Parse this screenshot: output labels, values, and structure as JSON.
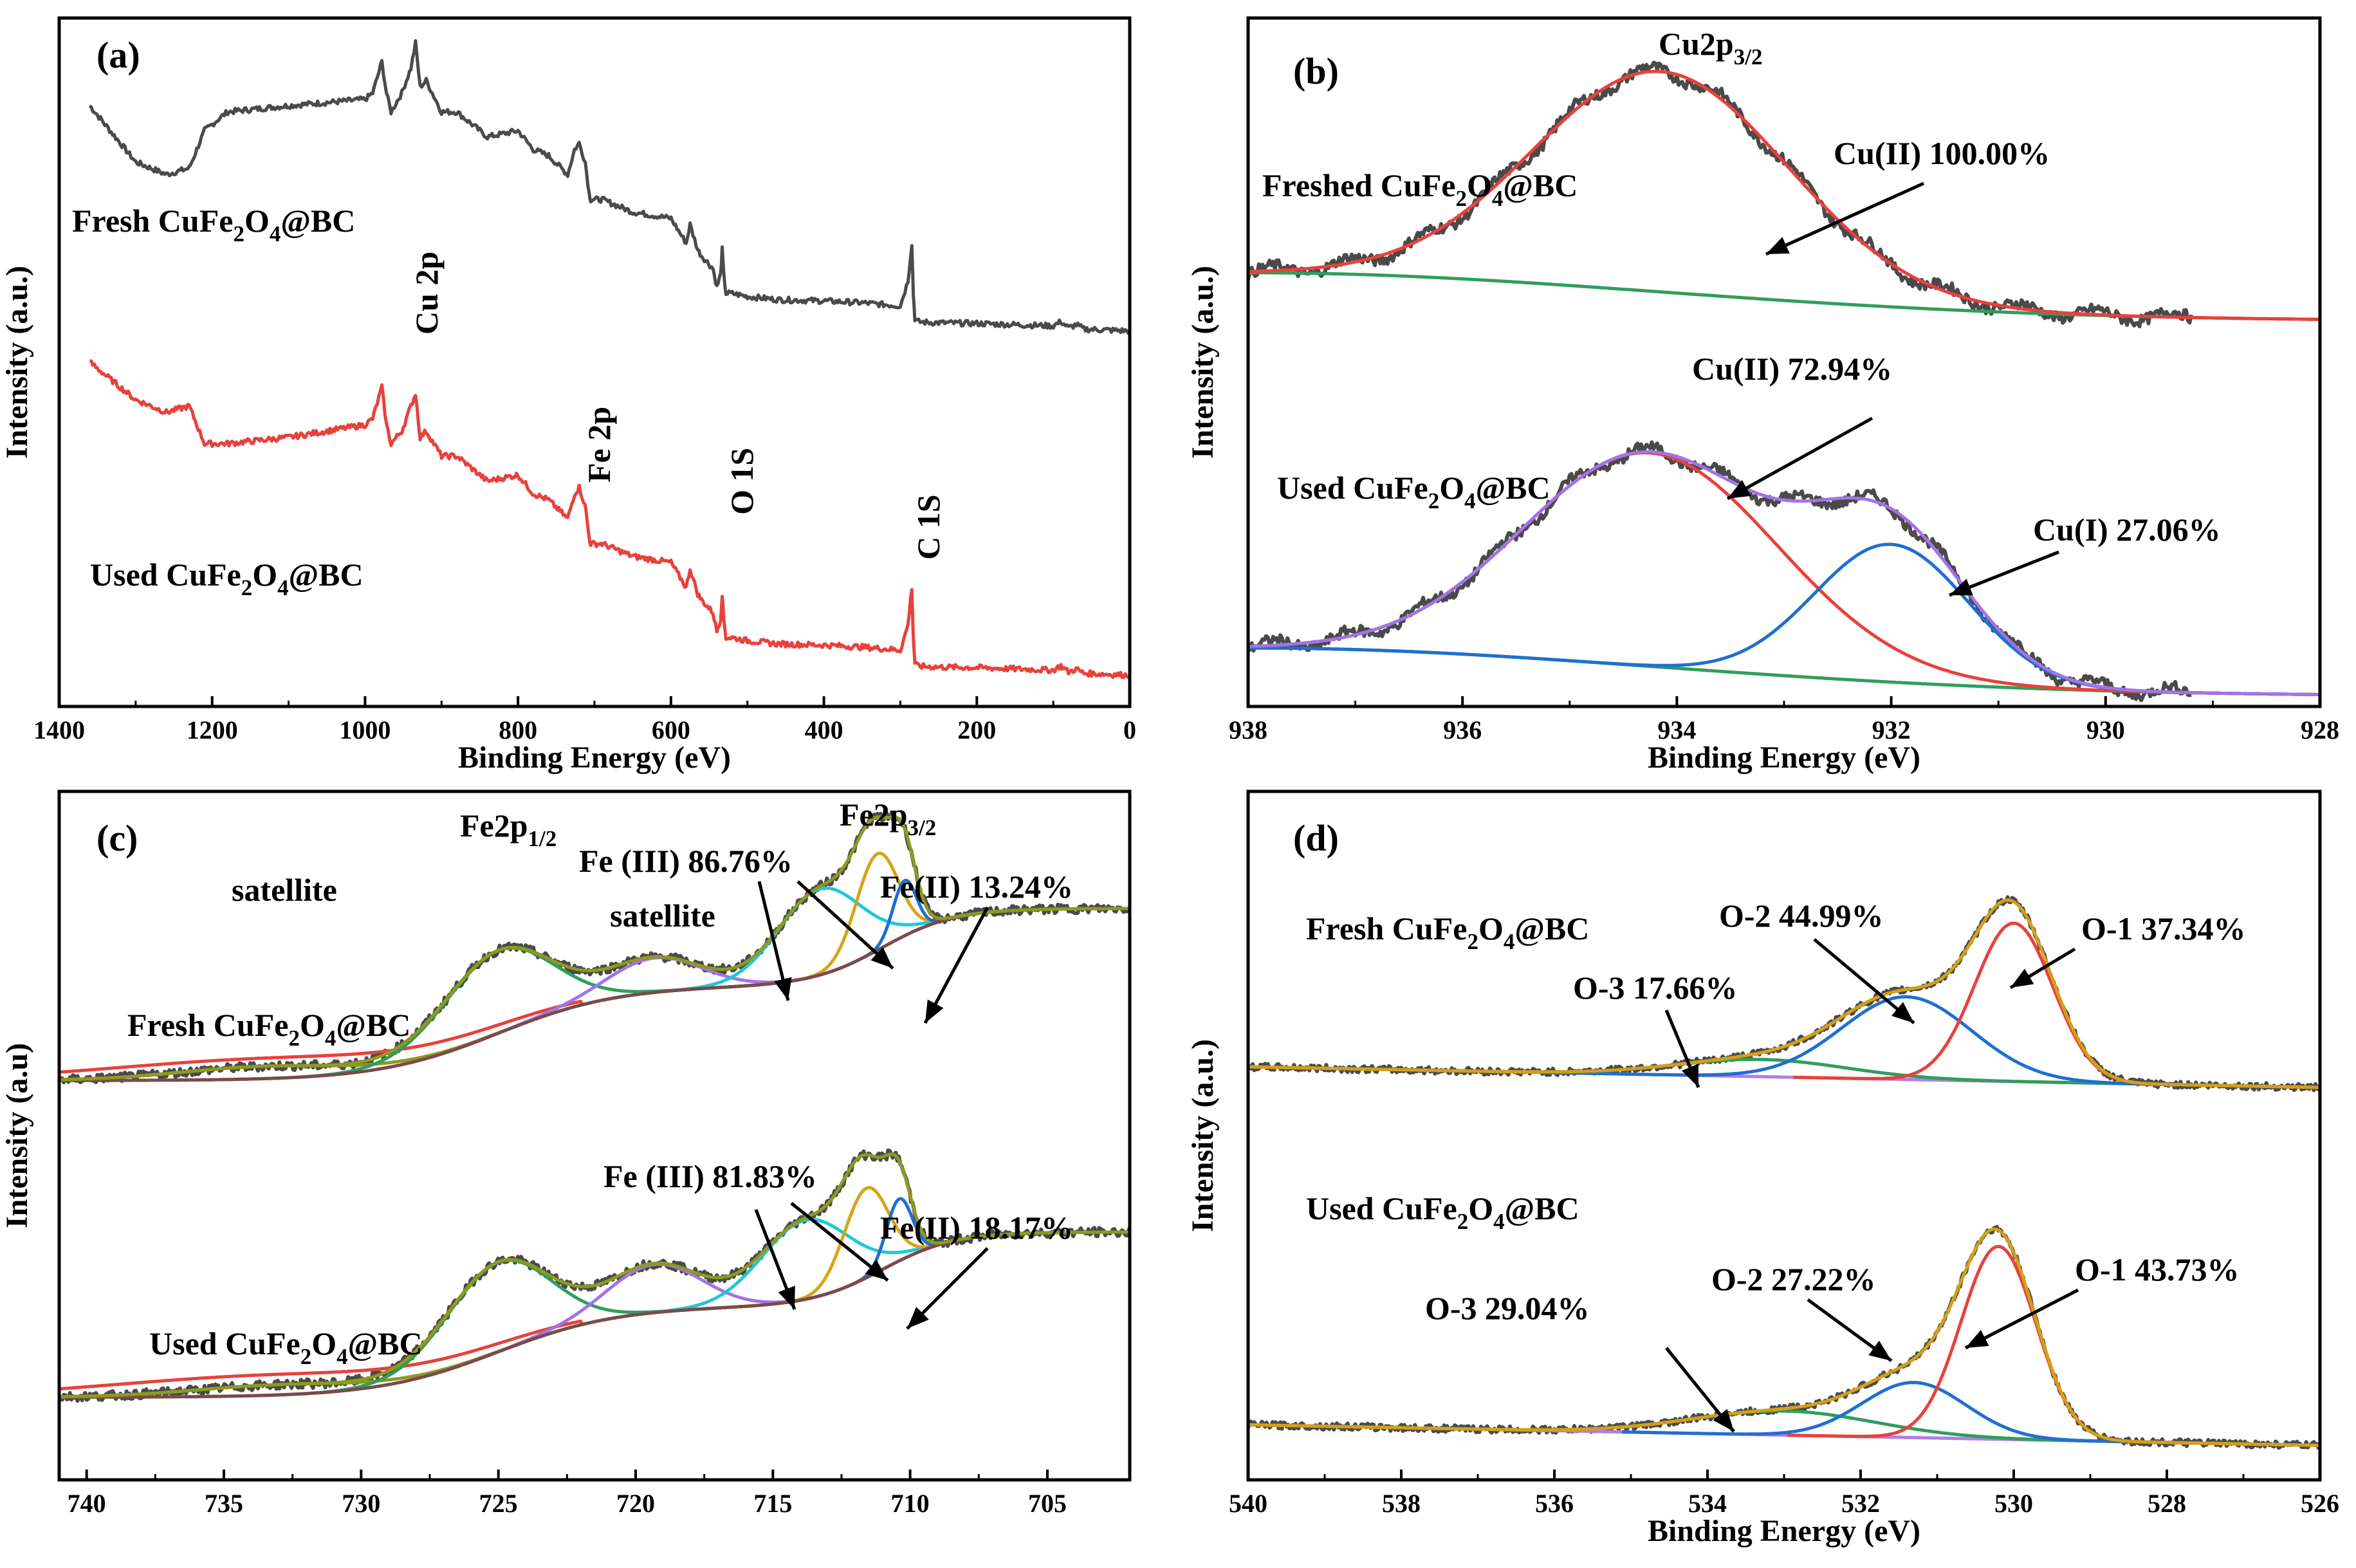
{
  "colors": {
    "data": "#4a4a4a",
    "red": "#e8413c",
    "green": "#2f9e5c",
    "blue": "#1f6fd1",
    "purple": "#a274e6",
    "cyan": "#1ec8d4",
    "gold": "#d8a31a",
    "olive": "#8d9a1e",
    "brown": "#7a4a4a",
    "envelope_d": "#d4a017",
    "lilac": "#b47ce6"
  },
  "chart_data": [
    {
      "id": "a",
      "type": "line",
      "panel_label": "(a)",
      "xlabel": "Binding Energy (eV)",
      "ylabel": "Intensity (a.u.)",
      "xlim": [
        1400,
        0
      ],
      "xticks": [
        "1400",
        "1200",
        "1000",
        "800",
        "600",
        "400",
        "200",
        "0"
      ],
      "annotations": [
        "Cu 2p",
        "Fe 2p",
        "O 1S",
        "C 1S"
      ],
      "series": [
        {
          "name": "Fresh",
          "label_parts": [
            "Fresh CuFe",
            "2",
            "O",
            "4",
            "@BC"
          ],
          "color": "#4a4a4a",
          "offset": 0,
          "x": [
            1360,
            1300,
            1260,
            1230,
            1210,
            1180,
            1100,
            1000,
            990,
            978,
            972,
            966,
            952,
            940,
            934,
            928,
            920,
            900,
            880,
            860,
            840,
            800,
            780,
            760,
            735,
            726,
            720,
            712,
            707,
            705,
            690,
            650,
            600,
            580,
            575,
            565,
            560,
            545,
            540,
            535,
            533,
            531,
            528,
            520,
            500,
            460,
            400,
            350,
            300,
            290,
            285,
            283,
            281,
            278,
            270,
            250,
            200,
            150,
            100,
            90,
            80,
            70,
            60,
            40,
            20,
            0
          ],
          "y": [
            56,
            47,
            45,
            46,
            52,
            55,
            56,
            57,
            58,
            63,
            58,
            55,
            58,
            62,
            66,
            59,
            60,
            55,
            55,
            53,
            51,
            52,
            49,
            48,
            45,
            49,
            50,
            47,
            42,
            41,
            41,
            39,
            38,
            34,
            37,
            33,
            32,
            30,
            27,
            29,
            33,
            29,
            26,
            26,
            25.5,
            25,
            24.8,
            24.5,
            24,
            28,
            34,
            26,
            22,
            21.5,
            21.4,
            21.3,
            21.2,
            21,
            20.8,
            21.5,
            20.5,
            21,
            20.3,
            20.2,
            20.1,
            20
          ]
        },
        {
          "name": "Used",
          "label_parts": [
            "Used CuFe",
            "2",
            "O",
            "4",
            "@BC"
          ],
          "color": "#e8413c",
          "offset": 0,
          "x": [
            1360,
            1300,
            1260,
            1230,
            1210,
            1180,
            1100,
            1000,
            990,
            978,
            972,
            966,
            952,
            940,
            934,
            928,
            920,
            900,
            880,
            860,
            840,
            800,
            780,
            760,
            735,
            726,
            720,
            712,
            707,
            705,
            690,
            650,
            600,
            580,
            575,
            565,
            560,
            545,
            540,
            535,
            533,
            531,
            528,
            520,
            500,
            460,
            400,
            350,
            300,
            290,
            285,
            283,
            281,
            278,
            270,
            250,
            200,
            150,
            100,
            90,
            80,
            70,
            60,
            40,
            20,
            0
          ],
          "y": [
            15,
            9,
            7,
            8,
            2,
            2,
            3,
            5,
            6,
            11,
            5,
            2,
            4,
            8,
            10,
            3,
            4,
            0,
            0,
            -2,
            -4,
            -3,
            -6,
            -7,
            -10,
            -6,
            -5,
            -8,
            -13,
            -14,
            -14,
            -16,
            -17,
            -21,
            -18,
            -22,
            -23,
            -25,
            -28,
            -26,
            -22,
            -26,
            -29,
            -29,
            -29.5,
            -30,
            -30.2,
            -30.5,
            -31,
            -27,
            -21,
            -29,
            -33,
            -33.5,
            -33.6,
            -33.7,
            -33.8,
            -34,
            -34.2,
            -33.5,
            -34.5,
            -34,
            -34.7,
            -34.8,
            -34.9,
            -35
          ]
        }
      ],
      "ylim": [
        -40,
        70
      ]
    },
    {
      "id": "b",
      "type": "line",
      "panel_label": "(b)",
      "xlabel": "Binding Energy (eV)",
      "ylabel": "Intensity (a.u.)",
      "xlim": [
        938,
        928
      ],
      "ylim": [
        0,
        100
      ],
      "xticks": [
        "938",
        "936",
        "934",
        "932",
        "930",
        "928"
      ],
      "peak_title_parts": [
        "Cu2p",
        "3/2"
      ],
      "annotations": [
        "Cu(II) 100.00%",
        "Cu(II) 72.94%",
        "Cu(I) 27.06%"
      ],
      "series_labels": [
        [
          "Freshed CuFe",
          "2",
          "O",
          "4",
          "@BC"
        ],
        [
          "Used CuFe",
          "2",
          "O",
          "4",
          "@BC"
        ]
      ],
      "fresh": {
        "baseline_left": 63,
        "baseline_right": 56,
        "peaks": [
          {
            "center": 934.15,
            "fwhm": 2.8,
            "height": 32
          }
        ]
      },
      "used": {
        "baseline_left": 8.5,
        "baseline_right": 1.5,
        "peaks": [
          {
            "center": 934.25,
            "fwhm": 2.8,
            "height": 31
          },
          {
            "center": 932.0,
            "fwhm": 1.7,
            "height": 20
          }
        ]
      }
    },
    {
      "id": "c",
      "type": "line",
      "panel_label": "(c)",
      "xlabel": "",
      "ylabel": "Intensity (a.u)",
      "xlim": [
        741,
        702
      ],
      "ylim": [
        0,
        100
      ],
      "xticks": [
        "740",
        "735",
        "730",
        "725",
        "720",
        "715",
        "710",
        "705"
      ],
      "peak_titles": [
        [
          "Fe2p",
          "1/2"
        ],
        [
          "Fe2p",
          "3/2"
        ]
      ],
      "annotations": [
        "satellite",
        "satellite",
        "Fe (III) 86.76%",
        "Fe(II) 13.24%",
        "Fe (III) 81.83%",
        "Fe(II) 18.17%"
      ],
      "series_labels": [
        [
          "Fresh CuFe",
          "2",
          "O",
          "4",
          "@BC"
        ],
        [
          "Used CuFe",
          "2",
          "O",
          "4",
          "@BC"
        ]
      ],
      "fresh": {
        "step_hi": 83,
        "step_lo": 58,
        "peaks": [
          {
            "center": 733.5,
            "fwhm": 7.5,
            "height": 1.8,
            "color": "#8d9a1e"
          },
          {
            "center": 725.0,
            "fwhm": 4.6,
            "height": 12,
            "color": "#2f9e5c"
          },
          {
            "center": 719.3,
            "fwhm": 4.0,
            "height": 5,
            "color": "#a274e6"
          },
          {
            "center": 713.3,
            "fwhm": 3.6,
            "height": 12.5,
            "color": "#1ec8d4"
          },
          {
            "center": 711.2,
            "fwhm": 1.8,
            "height": 14,
            "color": "#d8a31a"
          },
          {
            "center": 710.2,
            "fwhm": 1.0,
            "height": 8,
            "color": "#1f6fd1"
          }
        ]
      },
      "used": {
        "step_hi": 36,
        "step_lo": 12,
        "peaks": [
          {
            "center": 733.0,
            "fwhm": 7.5,
            "height": 1.5,
            "color": "#8d9a1e"
          },
          {
            "center": 725.0,
            "fwhm": 4.4,
            "height": 13,
            "color": "#2f9e5c"
          },
          {
            "center": 719.3,
            "fwhm": 4.0,
            "height": 7,
            "color": "#a274e6"
          },
          {
            "center": 713.8,
            "fwhm": 3.8,
            "height": 11.5,
            "color": "#1ec8d4"
          },
          {
            "center": 711.6,
            "fwhm": 1.9,
            "height": 13,
            "color": "#d8a31a"
          },
          {
            "center": 710.4,
            "fwhm": 1.1,
            "height": 9,
            "color": "#1f6fd1"
          }
        ]
      }
    },
    {
      "id": "d",
      "type": "line",
      "panel_label": "(d)",
      "xlabel": "Binding Energy (eV)",
      "ylabel": "Intensity (a.u.)",
      "xlim": [
        540,
        526
      ],
      "ylim": [
        0,
        100
      ],
      "xticks": [
        "540",
        "538",
        "536",
        "534",
        "532",
        "530",
        "528",
        "526"
      ],
      "annotations": [
        "O-2 44.99%",
        "O-1 37.34%",
        "O-3 17.66%",
        "O-2 27.22%",
        "O-1 43.73%",
        "O-3 29.04%"
      ],
      "series_labels": [
        [
          "Fresh CuFe",
          "2",
          "O",
          "4",
          "@BC"
        ],
        [
          "Used CuFe",
          "2",
          "O",
          "4",
          "@BC"
        ]
      ],
      "fresh": {
        "baseline_left": 60,
        "baseline_right": 57,
        "peaks": [
          {
            "center": 533.3,
            "fwhm": 2.6,
            "height": 2.5,
            "color": "#2f9e5c"
          },
          {
            "center": 531.4,
            "fwhm": 2.0,
            "height": 12,
            "color": "#1f6fd1"
          },
          {
            "center": 530.0,
            "fwhm": 1.2,
            "height": 23,
            "color": "#e8413c"
          }
        ]
      },
      "used": {
        "baseline_left": 8,
        "baseline_right": 5,
        "peaks": [
          {
            "center": 533.0,
            "fwhm": 2.8,
            "height": 3.5,
            "color": "#2f9e5c"
          },
          {
            "center": 531.3,
            "fwhm": 1.6,
            "height": 8,
            "color": "#1f6fd1"
          },
          {
            "center": 530.2,
            "fwhm": 1.15,
            "height": 28,
            "color": "#e8413c"
          }
        ]
      }
    }
  ]
}
